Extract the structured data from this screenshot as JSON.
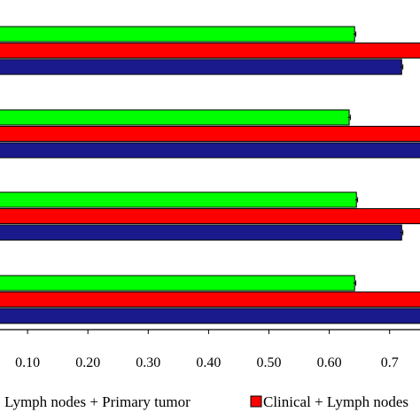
{
  "chart_data": {
    "type": "bar",
    "orientation": "horizontal",
    "categories": [
      "",
      "",
      "",
      ""
    ],
    "x_ticks": [
      "0.10",
      "0.20",
      "0.30",
      "0.40",
      "0.50",
      "0.60",
      "0.7"
    ],
    "x_tick_values": [
      0.1,
      0.2,
      0.3,
      0.4,
      0.5,
      0.6,
      0.7
    ],
    "xlim": [
      0.0,
      0.78
    ],
    "grid": false,
    "legend_position": "bottom",
    "series": [
      {
        "name": "Lymph nodes + Primary tumor",
        "color": "#00ff00",
        "values": [
          0.642,
          0.633,
          0.645,
          0.642
        ],
        "errors": [
          0.002,
          0.002,
          0.002,
          0.002
        ]
      },
      {
        "name": "Clinical + Lymph nodes",
        "color": "#ff0000",
        "values": [
          0.8,
          0.8,
          0.8,
          0.8
        ],
        "errors": [
          0,
          0,
          0,
          0
        ]
      },
      {
        "name": "",
        "color": "#1a1a8c",
        "values": [
          0.72,
          0.8,
          0.72,
          0.8
        ],
        "errors": [
          0.002,
          0,
          0.002,
          0
        ]
      }
    ],
    "legend": [
      {
        "label": "Lymph nodes + Primary tumor",
        "color": "#00ff00"
      },
      {
        "label": "Clinical + Lymph nodes",
        "color": "#ff0000"
      }
    ],
    "title": "",
    "xlabel": "",
    "ylabel": ""
  }
}
